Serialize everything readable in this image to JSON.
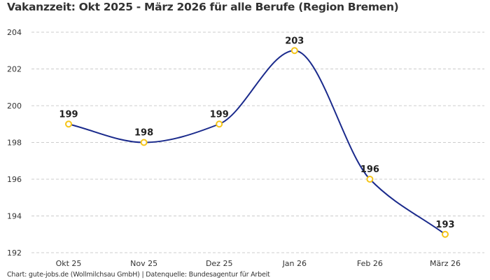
{
  "title": "Vakanzzeit: Okt 2025 - März 2026 für alle Berufe (Region Bremen)",
  "footer": "Chart: gute-jobs.de (Wollmilchsau GmbH) | Datenquelle: Bundesagentur für Arbeit",
  "chart_data": {
    "type": "line",
    "title": "Vakanzzeit: Okt 2025 - März 2026 für alle Berufe (Region Bremen)",
    "categories": [
      "Okt 25",
      "Nov 25",
      "Dez 25",
      "Jan 26",
      "Feb 26",
      "März 26"
    ],
    "values": [
      199,
      198,
      199,
      203,
      196,
      193
    ],
    "ylim": [
      192,
      204
    ],
    "yticks": [
      192,
      194,
      196,
      198,
      200,
      202,
      204
    ],
    "grid": "horizontal-dashed",
    "smooth": true,
    "data_labels": true,
    "colors": {
      "line": "#1a2a8c",
      "marker": "#f5c518",
      "grid": "#cccccc"
    }
  }
}
